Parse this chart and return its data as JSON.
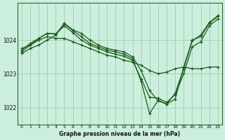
{
  "title": "Graphe pression niveau de la mer (hPa)",
  "background_color": "#cceedd",
  "grid_color": "#aaccbb",
  "line_color": "#1a5c1a",
  "series": [
    [
      1023.6,
      1023.75,
      1023.85,
      1024.0,
      1024.15,
      1024.5,
      1024.3,
      1024.2,
      1024.0,
      1023.85,
      1023.75,
      1023.7,
      1023.65,
      1023.5,
      1023.1,
      1022.5,
      1022.2,
      1022.1,
      1022.25,
      1023.2,
      1024.0,
      1024.1,
      1024.5,
      1024.7
    ],
    [
      1023.75,
      1023.85,
      1024.0,
      1024.1,
      1024.05,
      1024.05,
      1023.95,
      1023.85,
      1023.75,
      1023.65,
      1023.55,
      1023.5,
      1023.4,
      1023.35,
      1023.25,
      1023.1,
      1023.0,
      1023.05,
      1023.15,
      1023.2,
      1023.15,
      1023.15,
      1023.2,
      1023.2
    ],
    [
      1023.7,
      1023.9,
      1024.05,
      1024.2,
      1024.18,
      1024.42,
      1024.22,
      1024.0,
      1023.85,
      1023.75,
      1023.65,
      1023.58,
      1023.52,
      1023.4,
      1022.85,
      1022.3,
      1022.28,
      1022.15,
      1022.38,
      1023.0,
      1023.8,
      1023.95,
      1024.42,
      1024.62
    ],
    [
      1023.65,
      1023.85,
      1024.05,
      1024.2,
      1024.18,
      1024.48,
      1024.28,
      1024.1,
      1023.9,
      1023.8,
      1023.7,
      1023.65,
      1023.58,
      1023.45,
      1022.78,
      1021.82,
      1022.22,
      1022.1,
      1022.42,
      1023.15,
      1023.98,
      1024.15,
      1024.52,
      1024.72
    ]
  ],
  "x_labels": [
    "0",
    "1",
    "2",
    "3",
    "4",
    "5",
    "6",
    "7",
    "8",
    "9",
    "10",
    "11",
    "12",
    "13",
    "14",
    "15",
    "16",
    "17",
    "18",
    "19",
    "20",
    "21",
    "22",
    "23"
  ],
  "y_ticks": [
    1022,
    1023,
    1024
  ],
  "ylim": [
    1021.5,
    1025.1
  ],
  "xlim": [
    -0.5,
    23.5
  ]
}
